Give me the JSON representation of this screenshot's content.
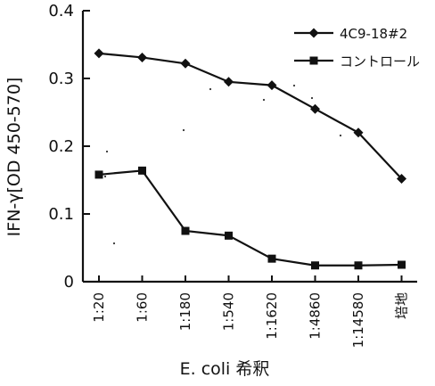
{
  "chart_data": {
    "type": "line",
    "categories": [
      "1:20",
      "1:60",
      "1:180",
      "1:540",
      "1:1620",
      "1:4860",
      "1:14580",
      "培地"
    ],
    "series": [
      {
        "name": "4C9-18#2",
        "marker": "diamond",
        "values": [
          0.337,
          0.331,
          0.322,
          0.295,
          0.29,
          0.255,
          0.22,
          0.152
        ]
      },
      {
        "name": "コントロール",
        "marker": "square",
        "values": [
          0.158,
          0.164,
          0.075,
          0.068,
          0.034,
          0.024,
          0.024,
          0.025
        ]
      }
    ],
    "xlabel": "E. coli 希釈",
    "ylabel": "IFN-γ[OD 450-570]",
    "ylim": [
      0,
      0.4
    ],
    "yticks": [
      0,
      0.1,
      0.2,
      0.3,
      0.4
    ],
    "ytick_labels": [
      "0",
      "0.1",
      "0.2",
      "0.3",
      "0.4"
    ],
    "grid": false,
    "legend_position": "top-right",
    "color": "#111111"
  }
}
